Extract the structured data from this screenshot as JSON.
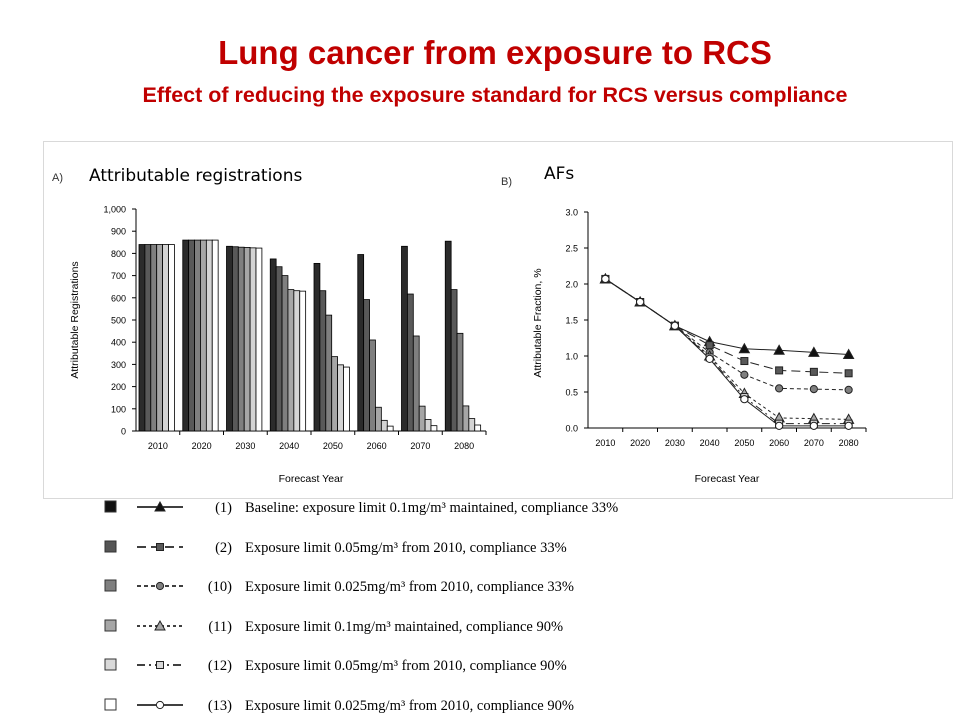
{
  "title": "Lung cancer from exposure to RCS",
  "subtitle": "Effect of reducing the exposure standard for RCS versus compliance",
  "chart_data": [
    {
      "panel_tag": "A)",
      "panel_title": "Attributable registrations",
      "type": "bar",
      "xlabel": "Forecast Year",
      "ylabel": "Attributable Registrations",
      "categories": [
        "2010",
        "2020",
        "2030",
        "2040",
        "2050",
        "2060",
        "2070",
        "2080"
      ],
      "ylim": [
        0,
        1000
      ],
      "yticks": [
        "0",
        "100",
        "200",
        "300",
        "400",
        "500",
        "600",
        "700",
        "800",
        "900",
        "1,000"
      ],
      "series": [
        {
          "values": [
            840,
            860,
            832,
            775,
            755,
            795,
            832,
            855
          ]
        },
        {
          "values": [
            840,
            860,
            830,
            740,
            632,
            592,
            617,
            637
          ]
        },
        {
          "values": [
            840,
            860,
            828,
            700,
            522,
            410,
            428,
            440
          ]
        },
        {
          "values": [
            840,
            860,
            827,
            637,
            335,
            107,
            112,
            113
          ]
        },
        {
          "values": [
            840,
            860,
            825,
            632,
            298,
            48,
            52,
            56
          ]
        },
        {
          "values": [
            840,
            860,
            824,
            630,
            288,
            22,
            24,
            27
          ]
        }
      ]
    },
    {
      "panel_tag": "B)",
      "panel_title": "AFs",
      "type": "line",
      "xlabel": "Forecast Year",
      "ylabel": "Attributable Fraction, %",
      "x": [
        2010,
        2020,
        2030,
        2040,
        2050,
        2060,
        2070,
        2080
      ],
      "ylim": [
        0,
        3.0
      ],
      "yticks": [
        "0.0",
        "0.5",
        "1.0",
        "1.5",
        "2.0",
        "2.5",
        "3.0"
      ],
      "series": [
        {
          "values": [
            2.07,
            1.75,
            1.42,
            1.2,
            1.1,
            1.08,
            1.05,
            1.02
          ]
        },
        {
          "values": [
            2.07,
            1.75,
            1.42,
            1.15,
            0.93,
            0.8,
            0.78,
            0.76
          ]
        },
        {
          "values": [
            2.07,
            1.75,
            1.42,
            1.05,
            0.74,
            0.55,
            0.54,
            0.53
          ]
        },
        {
          "values": [
            2.07,
            1.75,
            1.42,
            1.0,
            0.48,
            0.14,
            0.13,
            0.12
          ]
        },
        {
          "values": [
            2.07,
            1.75,
            1.42,
            0.98,
            0.43,
            0.06,
            0.06,
            0.06
          ]
        },
        {
          "values": [
            2.07,
            1.75,
            1.42,
            0.96,
            0.4,
            0.03,
            0.03,
            0.03
          ]
        }
      ]
    }
  ],
  "legend": [
    {
      "label": "(1)",
      "text": "Baseline: exposure limit 0.1mg/m³ maintained, compliance 33%",
      "swatch": "#111111",
      "marker": "triangle",
      "dash": ""
    },
    {
      "label": "(2)",
      "text": "Exposure limit 0.05mg/m³ from 2010, compliance 33%",
      "swatch": "#555555",
      "marker": "square",
      "dash": "9,5"
    },
    {
      "label": "(10)",
      "text": "Exposure limit 0.025mg/m³ from 2010, compliance 33%",
      "swatch": "#7f7f7f",
      "marker": "circle",
      "dash": "4,3"
    },
    {
      "label": "(11)",
      "text": "Exposure limit 0.1mg/m³ maintained, compliance 90%",
      "swatch": "#a6a6a6",
      "marker": "triangle-open",
      "dash": "3,3"
    },
    {
      "label": "(12)",
      "text": "Exposure limit 0.05mg/m³ from 2010, compliance 90%",
      "swatch": "#d9d9d9",
      "marker": "square-open",
      "dash": "8,4,2,4"
    },
    {
      "label": "(13)",
      "text": "Exposure limit 0.025mg/m³ from 2010, compliance 90%",
      "swatch": "#ffffff",
      "marker": "circle-open",
      "dash": ""
    }
  ],
  "colors": {
    "title": "#c00000",
    "bar_fills": [
      "#2b2b2b",
      "#595959",
      "#7f7f7f",
      "#a6a6a6",
      "#d4d4d4",
      "#ffffff"
    ],
    "marker_fills": [
      "#111111",
      "#595959",
      "#7f7f7f",
      "#a6a6a6",
      "#d9d9d9",
      "#ffffff"
    ]
  }
}
